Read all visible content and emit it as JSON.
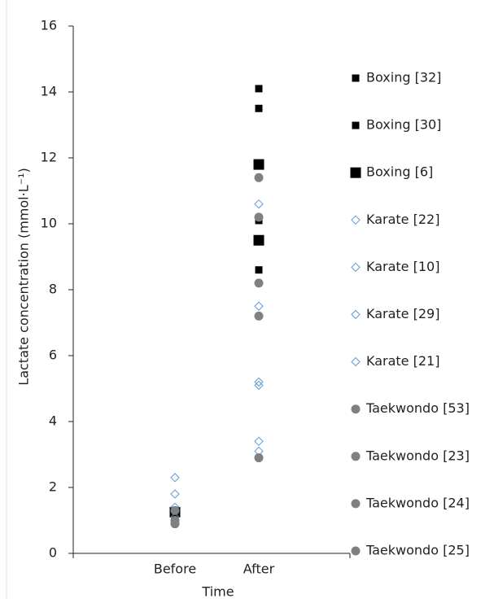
{
  "chart_data": {
    "type": "scatter",
    "x_label": "Time",
    "y_label": "Lactate concentration (mmol·L⁻¹)",
    "categories": [
      "Before",
      "After"
    ],
    "ylim": [
      0,
      16
    ],
    "yticks": [
      0,
      2,
      4,
      6,
      8,
      10,
      12,
      14,
      16
    ],
    "series": [
      {
        "name": "Boxing [32]",
        "color": "#000000",
        "marker": "square",
        "x": [
          "Before",
          "After",
          "After"
        ],
        "values": [
          1.3,
          14.1,
          10.1
        ]
      },
      {
        "name": "Boxing [30]",
        "color": "#000000",
        "marker": "square",
        "x": [
          "Before",
          "After",
          "After"
        ],
        "values": [
          1.2,
          13.5,
          8.6
        ]
      },
      {
        "name": "Boxing [6]",
        "color": "#000000",
        "marker": "big-square",
        "x": [
          "Before",
          "After",
          "After"
        ],
        "values": [
          1.25,
          11.8,
          9.5
        ]
      },
      {
        "name": "Karate [22]",
        "color": "#5b9bd5",
        "marker": "diamond",
        "x": [
          "Before",
          "After"
        ],
        "values": [
          1.4,
          10.6
        ]
      },
      {
        "name": "Karate [10]",
        "color": "#5b9bd5",
        "marker": "diamond",
        "x": [
          "Before",
          "After",
          "After"
        ],
        "values": [
          2.3,
          7.5,
          3.4
        ]
      },
      {
        "name": "Karate [29]",
        "color": "#5b9bd5",
        "marker": "diamond",
        "x": [
          "Before",
          "After"
        ],
        "values": [
          1.8,
          5.2
        ]
      },
      {
        "name": "Karate [21]",
        "color": "#5b9bd5",
        "marker": "diamond",
        "x": [
          "Before",
          "After",
          "After"
        ],
        "values": [
          1.1,
          5.1,
          3.1
        ]
      },
      {
        "name": "Taekwondo [53]",
        "color": "#808080",
        "marker": "circle",
        "x": [
          "Before",
          "After"
        ],
        "values": [
          1.0,
          11.4
        ]
      },
      {
        "name": "Taekwondo [23]",
        "color": "#808080",
        "marker": "circle",
        "x": [
          "Before",
          "After"
        ],
        "values": [
          0.9,
          10.2
        ]
      },
      {
        "name": "Taekwondo [24]",
        "color": "#808080",
        "marker": "circle",
        "x": [
          "Before",
          "After",
          "After"
        ],
        "values": [
          1.3,
          8.2,
          7.2
        ]
      },
      {
        "name": "Taekwondo [25]",
        "color": "#808080",
        "marker": "circle",
        "x": [
          "Before",
          "After"
        ],
        "values": [
          0.9,
          2.9
        ]
      }
    ]
  }
}
